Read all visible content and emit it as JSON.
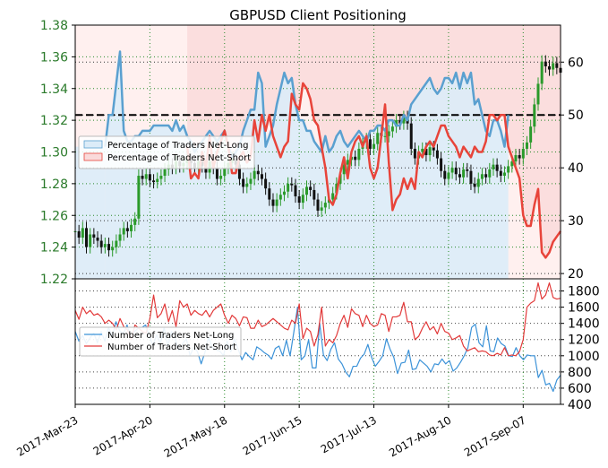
{
  "chart_data": [
    {
      "type": "line",
      "title": "GBPUSD Client Positioning",
      "x_tick_labels": [
        "2017-Mar-23",
        "2017-Apr-20",
        "2017-May-18",
        "2017-Jun-15",
        "2017-Jul-13",
        "2017-Aug-10",
        "2017-Sep-07"
      ],
      "x_range": [
        0,
        130
      ],
      "x_tick_index": [
        0,
        20,
        40,
        60,
        80,
        100,
        120
      ],
      "left_axis": {
        "ticks": [
          1.22,
          1.24,
          1.26,
          1.28,
          1.3,
          1.32,
          1.34,
          1.36,
          1.38
        ],
        "ylim": [
          1.22,
          1.38
        ],
        "color": "#2a7a2a"
      },
      "right_axis": {
        "ticks": [
          20,
          30,
          40,
          50,
          60
        ],
        "ylim": [
          19,
          67
        ]
      },
      "grid": true,
      "legend": {
        "placement": "left",
        "entries": [
          "Percentage of Traders Net-Long",
          "Percentage of Traders Net-Short"
        ]
      },
      "reference_line": {
        "axis": "right",
        "value": 50,
        "style": "dashed",
        "color": "#000000"
      },
      "price_series": {
        "name": "GBPUSD",
        "axis": "left",
        "values": [
          1.25,
          1.246,
          1.252,
          1.24,
          1.248,
          1.246,
          1.244,
          1.24,
          1.242,
          1.238,
          1.24,
          1.244,
          1.248,
          1.252,
          1.25,
          1.254,
          1.258,
          1.285,
          1.283,
          1.286,
          1.282,
          1.281,
          1.283,
          1.285,
          1.289,
          1.292,
          1.29,
          1.294,
          1.291,
          1.293,
          1.295,
          1.293,
          1.29,
          1.294,
          1.291,
          1.287,
          1.294,
          1.29,
          1.283,
          1.285,
          1.29,
          1.293,
          1.296,
          1.292,
          1.283,
          1.278,
          1.28,
          1.283,
          1.288,
          1.286,
          1.283,
          1.277,
          1.27,
          1.266,
          1.27,
          1.273,
          1.275,
          1.28,
          1.279,
          1.272,
          1.268,
          1.273,
          1.278,
          1.276,
          1.27,
          1.263,
          1.265,
          1.268,
          1.27,
          1.274,
          1.28,
          1.286,
          1.292,
          1.295,
          1.297,
          1.295,
          1.302,
          1.306,
          1.308,
          1.302,
          1.305,
          1.312,
          1.31,
          1.31,
          1.313,
          1.316,
          1.32,
          1.318,
          1.322,
          1.318,
          1.302,
          1.296,
          1.3,
          1.302,
          1.298,
          1.303,
          1.301,
          1.296,
          1.288,
          1.283,
          1.287,
          1.29,
          1.286,
          1.284,
          1.289,
          1.288,
          1.28,
          1.278,
          1.283,
          1.286,
          1.284,
          1.289,
          1.292,
          1.288,
          1.285,
          1.287,
          1.291,
          1.294,
          1.298,
          1.296,
          1.302,
          1.306,
          1.316,
          1.33,
          1.343,
          1.357,
          1.354,
          1.352,
          1.356,
          1.353,
          1.35
        ]
      },
      "series": [
        {
          "name": "Percentage of Traders Net-Long",
          "axis": "right",
          "color": "#5aa0d0",
          "fill": "#dcecf8",
          "x": [
            8,
            9,
            10,
            11,
            12,
            13,
            14,
            15,
            16,
            17,
            18,
            19,
            20,
            21,
            22,
            23,
            24,
            25,
            26,
            27,
            28,
            29,
            30,
            31,
            32,
            33,
            34,
            35,
            36,
            37,
            38,
            39,
            40,
            41,
            42,
            43,
            44,
            45,
            46,
            47,
            48,
            49,
            50,
            51,
            52,
            53,
            54,
            55,
            56,
            57,
            58,
            59,
            60,
            61,
            62,
            63,
            64,
            65,
            66,
            67,
            68,
            69,
            70,
            71,
            72,
            73,
            74,
            75,
            76,
            77,
            78,
            79,
            80,
            81,
            82,
            83,
            84,
            85,
            86,
            87,
            88,
            89,
            90,
            91,
            92,
            93,
            94,
            95,
            96,
            97,
            98,
            99,
            100,
            101,
            102,
            103,
            104,
            105,
            106,
            107,
            108,
            109,
            110,
            111,
            112,
            113,
            114,
            115,
            116
          ],
          "values": [
            44,
            50,
            50,
            56,
            62,
            47,
            45,
            45,
            46,
            46,
            47,
            47,
            47,
            48,
            48,
            48,
            48,
            48,
            47,
            49,
            47,
            48,
            46,
            45,
            43,
            44,
            45,
            46,
            47,
            46,
            45,
            46,
            47,
            44,
            42,
            43,
            44,
            47,
            49,
            51,
            51,
            58,
            56,
            44,
            46,
            48,
            52,
            55,
            58,
            56,
            57,
            52,
            49,
            49,
            47,
            47,
            45,
            44,
            43,
            46,
            43,
            44,
            46,
            47,
            45,
            44,
            45,
            46,
            47,
            46,
            45,
            47,
            47,
            48,
            48,
            47,
            49,
            49,
            48,
            48,
            50,
            49,
            52,
            53,
            54,
            55,
            56,
            57,
            55,
            54,
            55,
            57,
            57,
            56,
            58,
            55,
            58,
            56,
            58,
            52,
            53,
            50,
            47,
            46,
            49,
            49,
            47,
            44,
            50
          ]
        },
        {
          "name": "Percentage of Traders Net-Short",
          "axis": "right",
          "color": "#e8443a",
          "fill": "#fadada",
          "x": [
            30,
            31,
            32,
            33,
            34,
            35,
            36,
            37,
            38,
            39,
            40,
            41,
            42,
            43,
            44,
            45,
            46,
            47,
            48,
            49,
            50,
            51,
            52,
            53,
            54,
            55,
            56,
            57,
            58,
            59,
            60,
            61,
            62,
            63,
            64,
            65,
            66,
            67,
            68,
            69,
            70,
            71,
            72,
            73,
            74,
            75,
            76,
            77,
            78,
            79,
            80,
            81,
            82,
            83,
            84,
            85,
            86,
            87,
            88,
            89,
            90,
            91,
            92,
            93,
            94,
            95,
            96,
            97,
            98,
            99,
            100,
            101,
            102,
            103,
            104,
            105,
            106,
            107,
            108,
            109,
            110,
            111,
            112,
            113,
            114,
            115,
            116,
            117,
            118,
            119,
            120,
            121,
            122,
            123,
            124,
            125,
            126,
            127,
            128,
            129,
            130
          ],
          "values": [
            44,
            38,
            39,
            38,
            43,
            40,
            46,
            40,
            43,
            45,
            47,
            44,
            39,
            39,
            42,
            43,
            41,
            42,
            49,
            45,
            50,
            47,
            50,
            46,
            44,
            42,
            44,
            45,
            54,
            52,
            51,
            56,
            55,
            53,
            49,
            48,
            44,
            40,
            34,
            33,
            35,
            39,
            42,
            38,
            43,
            45,
            46,
            44,
            46,
            40,
            38,
            40,
            46,
            52,
            41,
            32,
            34,
            35,
            38,
            36,
            38,
            36,
            43,
            42,
            44,
            45,
            44,
            46,
            48,
            48,
            46,
            45,
            44,
            42,
            44,
            43,
            42,
            44,
            43,
            43,
            45,
            50,
            50,
            49,
            50,
            50,
            44,
            42,
            40,
            38,
            31,
            29,
            29,
            33,
            36,
            24,
            23,
            24,
            26,
            27,
            28
          ]
        }
      ]
    },
    {
      "type": "line",
      "y_ticks": [
        400,
        600,
        800,
        1000,
        1200,
        1400,
        1600,
        1800
      ],
      "ylim": [
        400,
        1950
      ],
      "x_range": [
        0,
        130
      ],
      "grid": true,
      "legend": {
        "placement": "left",
        "entries": [
          "Number of Traders Net-Long",
          "Number of Traders Net-Short"
        ]
      },
      "series": [
        {
          "name": "Number of Traders Net-Long",
          "color": "#3b92d8",
          "values": [
            1300,
            1180,
            1250,
            1150,
            1220,
            1280,
            1160,
            1300,
            1180,
            1350,
            1240,
            1420,
            1310,
            1270,
            1380,
            1220,
            1300,
            1340,
            1350,
            1380,
            1240,
            1130,
            1260,
            1150,
            1350,
            1120,
            1300,
            1200,
            1060,
            1150,
            1210,
            1000,
            1110,
            1050,
            900,
            1040,
            1230,
            1100,
            1070,
            1060,
            1000,
            1180,
            1050,
            1210,
            1080,
            950,
            1040,
            990,
            950,
            1110,
            1080,
            1040,
            1010,
            960,
            1090,
            1120,
            1000,
            1190,
            1000,
            1290,
            1600,
            950,
            1000,
            1200,
            850,
            850,
            1400,
            1010,
            940,
            1080,
            1160,
            960,
            900,
            800,
            740,
            870,
            870,
            970,
            1020,
            1140,
            980,
            870,
            930,
            1000,
            1210,
            1080,
            980,
            780,
            910,
            920,
            1070,
            830,
            840,
            950,
            910,
            870,
            800,
            900,
            890,
            960,
            900,
            940,
            810,
            850,
            920,
            1000,
            1100,
            1350,
            1390,
            1160,
            1110,
            1370,
            1060,
            1050,
            1220,
            1150,
            1120,
            1000,
            990,
            1100,
            1000,
            950,
            1010,
            1000,
            1000,
            730,
            820,
            640,
            660,
            560,
            700,
            760
          ]
        },
        {
          "name": "Number of Traders Net-Short",
          "color": "#e23a3a",
          "values": [
            1560,
            1450,
            1600,
            1520,
            1560,
            1500,
            1520,
            1480,
            1400,
            1440,
            1400,
            1320,
            1460,
            1360,
            1320,
            1200,
            1380,
            1340,
            1300,
            1280,
            1460,
            1750,
            1470,
            1520,
            1640,
            1420,
            1560,
            1360,
            1680,
            1600,
            1640,
            1500,
            1560,
            1520,
            1500,
            1560,
            1480,
            1560,
            1600,
            1640,
            1500,
            1400,
            1500,
            1460,
            1370,
            1480,
            1470,
            1340,
            1340,
            1440,
            1360,
            1380,
            1420,
            1460,
            1420,
            1380,
            1340,
            1320,
            1440,
            1400,
            1640,
            1210,
            1340,
            1300,
            1120,
            1260,
            1600,
            1120,
            1200,
            1160,
            1250,
            1400,
            1500,
            1350,
            1580,
            1520,
            1500,
            1360,
            1500,
            1400,
            1360,
            1380,
            1520,
            1500,
            1300,
            1480,
            1480,
            1500,
            1660,
            1420,
            1420,
            1200,
            1240,
            1340,
            1420,
            1320,
            1360,
            1270,
            1400,
            1300,
            1280,
            1200,
            1220,
            1250,
            1120,
            1060,
            1080,
            1100,
            1050,
            1060,
            1050,
            1010,
            1000,
            1030,
            1010,
            1100,
            1000,
            1010,
            1000,
            1050,
            1200,
            1600,
            1650,
            1680,
            1900,
            1700,
            1750,
            1900,
            1720,
            1700,
            1710
          ]
        }
      ]
    }
  ]
}
